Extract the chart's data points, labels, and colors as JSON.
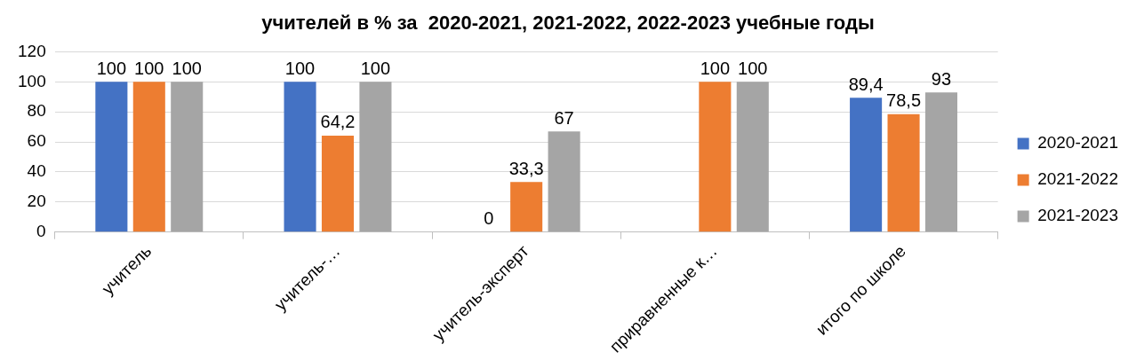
{
  "chart_data": {
    "type": "bar",
    "title": "учителей в % за  2020-2021, 2021-2022, 2022-2023 учебные годы",
    "categories": [
      "учитель",
      "учитель-…",
      "учитель-эксперт",
      "приравненные к…",
      "итого по школе"
    ],
    "series": [
      {
        "name": "2020-2021",
        "color": "#4472c4",
        "values": [
          100,
          100,
          0,
          null,
          89.4
        ],
        "value_labels": [
          "100",
          "100",
          "0",
          null,
          "89,4"
        ]
      },
      {
        "name": "2021-2022",
        "color": "#ed7d31",
        "values": [
          100,
          64.2,
          33.3,
          100,
          78.5
        ],
        "value_labels": [
          "100",
          "64,2",
          "33,3",
          "100",
          "78,5"
        ]
      },
      {
        "name": "2021-2023",
        "color": "#a5a5a5",
        "values": [
          100,
          100,
          67,
          100,
          93
        ],
        "value_labels": [
          "100",
          "100",
          "67",
          "100",
          "93"
        ]
      }
    ],
    "ylim": [
      0,
      120
    ],
    "yticks": [
      0,
      20,
      40,
      60,
      80,
      100,
      120
    ],
    "grid": "y",
    "legend": "right"
  }
}
